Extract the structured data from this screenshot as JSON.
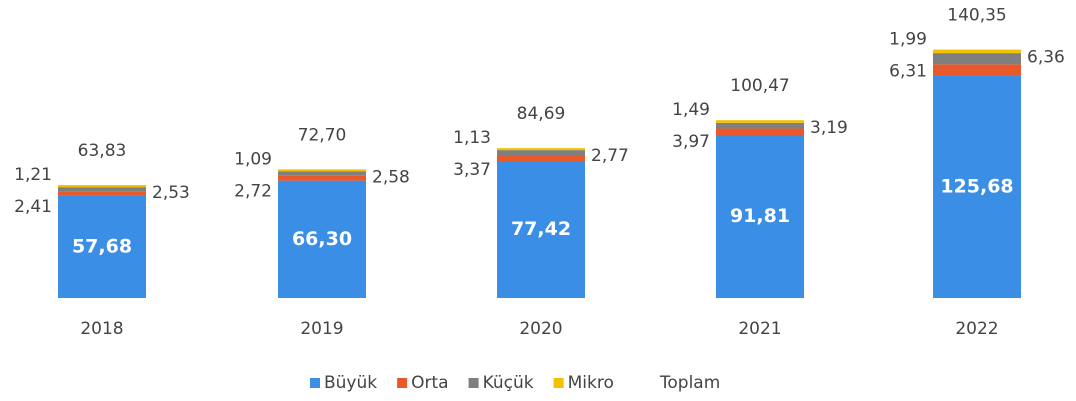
{
  "chart_data": {
    "type": "stacked_bar",
    "categories": [
      "2018",
      "2019",
      "2020",
      "2021",
      "2022"
    ],
    "series": [
      {
        "name": "Büyük",
        "color": "#3a8ee6",
        "values": [
          57.68,
          66.3,
          77.42,
          91.81,
          125.68
        ],
        "value_labels": [
          "57,68",
          "66,30",
          "77,42",
          "91,81",
          "125,68"
        ]
      },
      {
        "name": "Orta",
        "color": "#e8582a",
        "values": [
          2.41,
          2.72,
          3.37,
          3.97,
          6.31
        ],
        "value_labels": [
          "2,41",
          "2,72",
          "3,37",
          "3,97",
          "6,31"
        ]
      },
      {
        "name": "Küçük",
        "color": "#7f7f7f",
        "values": [
          2.53,
          2.58,
          2.77,
          3.19,
          6.36
        ],
        "value_labels": [
          "2,53",
          "2,58",
          "2,77",
          "3,19",
          "6,36"
        ]
      },
      {
        "name": "Mikro",
        "color": "#f2c200",
        "values": [
          1.21,
          1.09,
          1.13,
          1.49,
          1.99
        ],
        "value_labels": [
          "1,21",
          "1,09",
          "1,13",
          "1,49",
          "1,99"
        ]
      }
    ],
    "totals": {
      "name": "Toplam",
      "values": [
        63.83,
        72.7,
        84.69,
        100.47,
        140.35
      ],
      "value_labels": [
        "63,83",
        "72,70",
        "84,69",
        "100,47",
        "140,35"
      ]
    }
  }
}
